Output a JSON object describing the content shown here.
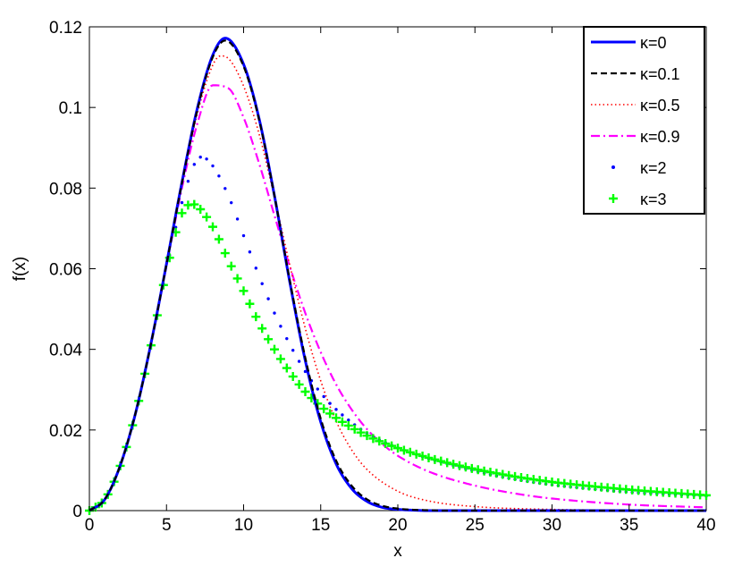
{
  "chart_data": {
    "type": "line",
    "title": "",
    "xlabel": "x",
    "ylabel": "f(x)",
    "xlim": [
      0,
      40
    ],
    "ylim": [
      0,
      0.12
    ],
    "x_ticks": [
      0,
      5,
      10,
      15,
      20,
      25,
      30,
      35,
      40
    ],
    "y_ticks": [
      0,
      0.02,
      0.04,
      0.06,
      0.08,
      0.1,
      0.12
    ],
    "x_tick_labels": [
      "0",
      "5",
      "10",
      "15",
      "20",
      "25",
      "30",
      "35",
      "40"
    ],
    "y_tick_labels": [
      "0",
      "0.02",
      "0.04",
      "0.06",
      "0.08",
      "0.1",
      "0.12"
    ],
    "grid": false,
    "legend_position": "top-right",
    "series": [
      {
        "name": "κ=0",
        "style": "solid",
        "color": "#0000ff",
        "x": [
          0,
          1,
          2,
          3,
          4,
          5,
          6,
          7,
          8,
          8.8,
          10,
          11,
          12,
          13,
          14,
          15,
          16,
          17,
          18,
          19,
          20,
          21,
          22,
          23,
          24,
          25,
          40
        ],
        "y": [
          0,
          0.0028,
          0.0112,
          0.0243,
          0.0416,
          0.0612,
          0.0814,
          0.0998,
          0.113,
          0.1172,
          0.1107,
          0.0973,
          0.0781,
          0.0566,
          0.0372,
          0.022,
          0.0116,
          0.0055,
          0.0023,
          0.0008,
          0.0003,
          0.0001,
          0,
          0,
          0,
          0,
          0
        ]
      },
      {
        "name": "κ=0.1",
        "style": "dashed",
        "color": "#000000",
        "x": [
          0,
          1,
          2,
          3,
          4,
          5,
          6,
          7,
          8,
          8.8,
          10,
          11,
          12,
          13,
          14,
          15,
          16,
          17,
          18,
          19,
          20,
          21,
          22,
          23,
          24,
          25,
          40
        ],
        "y": [
          0,
          0.0028,
          0.0112,
          0.0243,
          0.0415,
          0.0611,
          0.0812,
          0.0994,
          0.1125,
          0.1166,
          0.1102,
          0.097,
          0.0781,
          0.057,
          0.0379,
          0.0228,
          0.0124,
          0.0062,
          0.0028,
          0.0012,
          0.0005,
          0.0002,
          0.0001,
          0,
          0,
          0,
          0
        ]
      },
      {
        "name": "κ=0.5",
        "style": "dotted",
        "color": "#ff0000",
        "x": [
          0,
          1,
          2,
          3,
          4,
          5,
          6,
          7,
          8,
          8.5,
          9,
          10,
          11,
          12,
          13,
          14,
          15,
          16,
          17,
          18,
          20,
          22,
          25,
          30,
          35,
          40
        ],
        "y": [
          0,
          0.0028,
          0.0112,
          0.0243,
          0.0415,
          0.061,
          0.0808,
          0.0985,
          0.1105,
          0.1128,
          0.1122,
          0.1053,
          0.0935,
          0.0777,
          0.0608,
          0.0452,
          0.0322,
          0.0222,
          0.0151,
          0.0102,
          0.0048,
          0.0024,
          0.001,
          0.0003,
          0.0001,
          0
        ]
      },
      {
        "name": "κ=0.9",
        "style": "dashdot",
        "color": "#ff00ff",
        "x": [
          0,
          1,
          2,
          3,
          4,
          5,
          6,
          7,
          8,
          9,
          10,
          11,
          12,
          13,
          14,
          15,
          16,
          17,
          18,
          19,
          20,
          22,
          25,
          28,
          30,
          35,
          40
        ],
        "y": [
          0,
          0.0028,
          0.0112,
          0.0243,
          0.0414,
          0.0607,
          0.08,
          0.096,
          0.1055,
          0.1048,
          0.0975,
          0.0862,
          0.0732,
          0.0605,
          0.049,
          0.0393,
          0.0313,
          0.0251,
          0.0202,
          0.0165,
          0.0136,
          0.0097,
          0.0062,
          0.004,
          0.003,
          0.0015,
          0.0008
        ]
      },
      {
        "name": "κ=2",
        "style": "dots",
        "color": "#0000ff",
        "x": [
          0,
          1,
          2,
          3,
          4,
          5,
          6,
          7,
          7.3,
          8,
          9,
          10,
          11,
          12,
          13,
          14,
          15,
          16,
          18,
          20,
          22,
          25,
          28,
          30,
          35,
          40
        ],
        "y": [
          0,
          0.0028,
          0.0111,
          0.0242,
          0.0412,
          0.0598,
          0.0764,
          0.0872,
          0.0877,
          0.0855,
          0.0782,
          0.0682,
          0.0582,
          0.049,
          0.0412,
          0.0345,
          0.0292,
          0.0251,
          0.0192,
          0.0156,
          0.0129,
          0.0098,
          0.0075,
          0.0064,
          0.0046,
          0.0036
        ]
      },
      {
        "name": "κ=3",
        "style": "plus",
        "color": "#00ff00",
        "x": [
          0,
          1,
          2,
          3,
          4,
          5,
          6,
          6.7,
          7,
          8,
          9,
          10,
          11,
          12,
          13,
          14,
          15,
          16,
          18,
          20,
          22,
          25,
          28,
          30,
          35,
          40
        ],
        "y": [
          0,
          0.0028,
          0.0111,
          0.0241,
          0.041,
          0.0594,
          0.0738,
          0.076,
          0.0755,
          0.0704,
          0.0622,
          0.0545,
          0.0466,
          0.04,
          0.0343,
          0.0295,
          0.0259,
          0.023,
          0.0186,
          0.0155,
          0.0131,
          0.0103,
          0.0082,
          0.0071,
          0.0052,
          0.0038
        ]
      }
    ]
  }
}
